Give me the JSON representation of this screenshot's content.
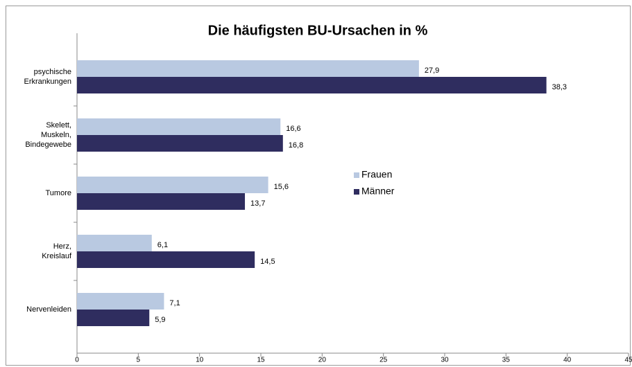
{
  "chart_data": {
    "type": "bar",
    "orientation": "horizontal",
    "title": "Die häufigsten BU-Ursachen in %",
    "categories": [
      "psychische\nErkrankungen",
      "Skelett,\nMuskeln,\nBindegewebe",
      "Tumore",
      "Herz,\nKreislauf",
      "Nervenleiden"
    ],
    "series": [
      {
        "name": "Frauen",
        "color": "#b9c9e1",
        "values": [
          27.9,
          16.6,
          15.6,
          6.1,
          7.1
        ],
        "value_labels": [
          "27,9",
          "16,6",
          "15,6",
          "6,1",
          "7,1"
        ]
      },
      {
        "name": "Männer",
        "color": "#2f2d5f",
        "values": [
          38.3,
          16.8,
          13.7,
          14.5,
          5.9
        ],
        "value_labels": [
          "38,3",
          "16,8",
          "13,7",
          "14,5",
          "5,9"
        ]
      }
    ],
    "xlim": [
      0,
      45
    ],
    "xticks": [
      0,
      5,
      10,
      15,
      20,
      25,
      30,
      35,
      40,
      45
    ],
    "legend": "center"
  }
}
